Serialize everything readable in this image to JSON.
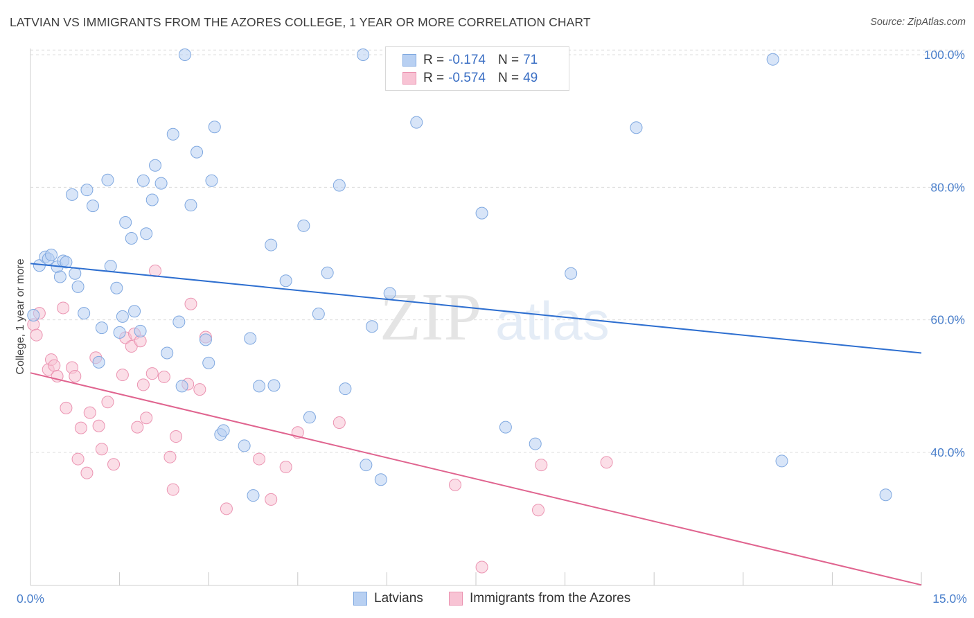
{
  "header": {
    "title": "LATVIAN VS IMMIGRANTS FROM THE AZORES COLLEGE, 1 YEAR OR MORE CORRELATION CHART",
    "source": "Source: ZipAtlas.com"
  },
  "watermark": {
    "zip": "ZIP",
    "atlas": "atlas"
  },
  "legend": {
    "series1": {
      "r_label": "R =",
      "r_value": "-0.174",
      "n_label": "N =",
      "n_value": "71"
    },
    "series2": {
      "r_label": "R =",
      "r_value": "-0.574",
      "n_label": "N =",
      "n_value": "49"
    }
  },
  "colors": {
    "blue_fill": "#b8d0f2",
    "blue_stroke": "#7fa8e0",
    "blue_line": "#2e6fd0",
    "pink_fill": "#f8c3d4",
    "pink_stroke": "#eb93b1",
    "pink_line": "#e0648f",
    "tick_text": "#4a7fcb",
    "grid": "#dcdcdc"
  },
  "chart_data": {
    "type": "scatter",
    "title": "LATVIAN VS IMMIGRANTS FROM THE AZORES COLLEGE, 1 YEAR OR MORE CORRELATION CHART",
    "xlabel": "",
    "ylabel": "College, 1 year or more",
    "xlim": [
      0,
      15
    ],
    "ylim": [
      20,
      101
    ],
    "x_tick_labels": [
      "0.0%",
      "15.0%"
    ],
    "y_ticks": [
      40,
      60,
      80,
      100
    ],
    "y_tick_labels": [
      "40.0%",
      "60.0%",
      "80.0%",
      "100.0%"
    ],
    "grid": "horizontal dashed",
    "legend_position": "bottom",
    "series": [
      {
        "name": "Latvians",
        "color": "#b8d0f2",
        "trend": {
          "x": [
            0,
            15
          ],
          "y": [
            68.5,
            55.0
          ]
        },
        "points": [
          [
            0.05,
            60.7
          ],
          [
            0.15,
            68.2
          ],
          [
            0.25,
            69.5
          ],
          [
            0.3,
            69.2
          ],
          [
            0.35,
            69.8
          ],
          [
            0.45,
            68.0
          ],
          [
            0.5,
            66.5
          ],
          [
            0.55,
            68.9
          ],
          [
            0.6,
            68.7
          ],
          [
            0.7,
            78.9
          ],
          [
            0.75,
            67.0
          ],
          [
            0.8,
            65.0
          ],
          [
            0.9,
            61.0
          ],
          [
            0.95,
            79.6
          ],
          [
            1.05,
            77.2
          ],
          [
            1.15,
            53.6
          ],
          [
            1.2,
            58.8
          ],
          [
            1.3,
            81.1
          ],
          [
            1.35,
            68.1
          ],
          [
            1.45,
            64.8
          ],
          [
            1.5,
            58.1
          ],
          [
            1.55,
            60.5
          ],
          [
            1.6,
            74.7
          ],
          [
            1.7,
            72.3
          ],
          [
            1.75,
            61.3
          ],
          [
            1.85,
            58.3
          ],
          [
            1.9,
            81.0
          ],
          [
            1.95,
            73.0
          ],
          [
            2.05,
            78.1
          ],
          [
            2.1,
            83.3
          ],
          [
            2.2,
            80.6
          ],
          [
            2.3,
            55.0
          ],
          [
            2.4,
            88.0
          ],
          [
            2.5,
            59.7
          ],
          [
            2.55,
            50.0
          ],
          [
            2.6,
            100.0
          ],
          [
            2.7,
            77.3
          ],
          [
            2.8,
            85.3
          ],
          [
            2.95,
            57.0
          ],
          [
            3.0,
            53.5
          ],
          [
            3.05,
            81.0
          ],
          [
            3.1,
            89.1
          ],
          [
            3.2,
            42.7
          ],
          [
            3.25,
            43.3
          ],
          [
            3.6,
            41.0
          ],
          [
            3.7,
            57.2
          ],
          [
            3.75,
            33.5
          ],
          [
            3.85,
            50.0
          ],
          [
            4.05,
            71.3
          ],
          [
            4.1,
            50.1
          ],
          [
            4.3,
            65.9
          ],
          [
            4.6,
            74.2
          ],
          [
            4.7,
            45.3
          ],
          [
            4.85,
            60.9
          ],
          [
            5.0,
            67.1
          ],
          [
            5.2,
            80.3
          ],
          [
            5.3,
            49.6
          ],
          [
            5.6,
            100.0
          ],
          [
            5.65,
            38.1
          ],
          [
            5.75,
            59.0
          ],
          [
            5.9,
            35.9
          ],
          [
            6.05,
            64.0
          ],
          [
            6.5,
            89.8
          ],
          [
            7.6,
            76.1
          ],
          [
            8.0,
            43.8
          ],
          [
            8.5,
            41.3
          ],
          [
            9.1,
            67.0
          ],
          [
            10.2,
            89.0
          ],
          [
            12.5,
            99.3
          ],
          [
            12.65,
            38.7
          ],
          [
            14.4,
            33.6
          ]
        ]
      },
      {
        "name": "Immigrants from the Azores",
        "color": "#f8c3d4",
        "trend": {
          "x": [
            0,
            15
          ],
          "y": [
            52.0,
            20.0
          ]
        },
        "points": [
          [
            0.05,
            59.3
          ],
          [
            0.1,
            57.7
          ],
          [
            0.15,
            61.0
          ],
          [
            0.3,
            52.5
          ],
          [
            0.35,
            54.0
          ],
          [
            0.4,
            53.1
          ],
          [
            0.45,
            51.5
          ],
          [
            0.55,
            61.8
          ],
          [
            0.6,
            46.7
          ],
          [
            0.7,
            52.8
          ],
          [
            0.75,
            51.5
          ],
          [
            0.8,
            39.0
          ],
          [
            0.85,
            43.7
          ],
          [
            0.95,
            36.9
          ],
          [
            1.0,
            46.0
          ],
          [
            1.1,
            54.3
          ],
          [
            1.15,
            44.0
          ],
          [
            1.2,
            40.5
          ],
          [
            1.3,
            47.6
          ],
          [
            1.4,
            38.2
          ],
          [
            1.55,
            51.7
          ],
          [
            1.6,
            57.3
          ],
          [
            1.7,
            56.0
          ],
          [
            1.75,
            57.9
          ],
          [
            1.8,
            43.8
          ],
          [
            1.85,
            56.8
          ],
          [
            1.9,
            50.2
          ],
          [
            1.95,
            45.2
          ],
          [
            2.05,
            51.9
          ],
          [
            2.1,
            67.4
          ],
          [
            2.25,
            51.4
          ],
          [
            2.35,
            39.3
          ],
          [
            2.4,
            34.4
          ],
          [
            2.45,
            42.4
          ],
          [
            2.65,
            50.3
          ],
          [
            2.7,
            62.4
          ],
          [
            2.85,
            49.5
          ],
          [
            2.95,
            57.4
          ],
          [
            3.3,
            31.5
          ],
          [
            3.85,
            39.0
          ],
          [
            4.05,
            32.9
          ],
          [
            4.3,
            37.8
          ],
          [
            4.5,
            43.0
          ],
          [
            5.2,
            44.5
          ],
          [
            7.15,
            35.1
          ],
          [
            7.6,
            22.7
          ],
          [
            8.55,
            31.3
          ],
          [
            8.6,
            38.1
          ],
          [
            9.7,
            38.5
          ]
        ]
      }
    ]
  },
  "bottom_legend": {
    "item1": "Latvians",
    "item2": "Immigrants from the Azores"
  }
}
